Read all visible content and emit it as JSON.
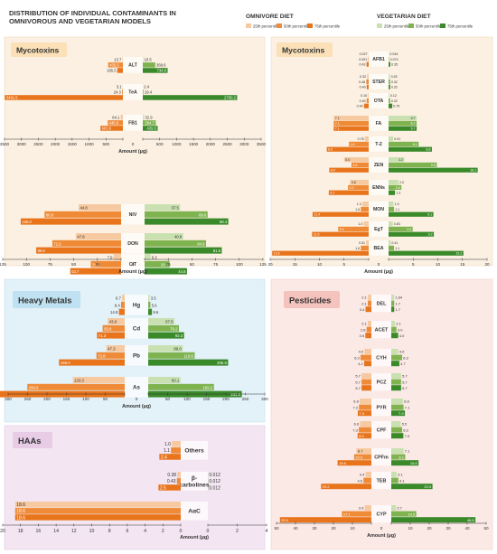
{
  "title_line1": "DISTRIBUTION OF INDIVIDUAL CONTAMINANTS IN",
  "title_line2": "OMNIVOROUS AND VEGETARIAN MODELS",
  "legend": {
    "omnivore_title": "OMNIVORE DIET",
    "vegetarian_title": "VEGETARIAN DIET",
    "p25_label": "25th percentile",
    "p50_label": "50th percentile",
    "p75_label": "75th percentile"
  },
  "colors": {
    "omn": [
      "#f6c9a0",
      "#ef8a36",
      "#e8741c"
    ],
    "veg": [
      "#c9e0b0",
      "#7fb34f",
      "#3a8a2a"
    ],
    "myco_bg": "#fbf0e2",
    "myco_title_bg": "#fbe0b8",
    "hm_bg": "#e3f1f8",
    "hm_title_bg": "#bfe1f1",
    "haa_bg": "#f3e6f2",
    "haa_title_bg": "#e8cce6",
    "pest_bg": "#fbe9e6",
    "pest_title_bg": "#f5c3bd"
  },
  "chart_data": [
    {
      "id": "myco_left_a",
      "section": "Mycotoxins",
      "type": "bar",
      "orientation": "horizontal-diverging",
      "categories": [
        "ALT",
        "TeA",
        "FB1"
      ],
      "xlim": [
        -3500,
        3500
      ],
      "ticks": [
        "3500",
        "3000",
        "2500",
        "2000",
        "1500",
        "1000",
        "500",
        "0",
        "500",
        "1000",
        "1500",
        "2000",
        "2500",
        "3000",
        "3500"
      ],
      "xlabel": "Amount (µg)",
      "omnivore": {
        "p25": [
          13.7,
          3.1,
          64.1
        ],
        "p50": [
          435.5,
          24.3,
          446.9
        ],
        "p75": [
          165.5,
          3491.5,
          663.6
        ]
      },
      "vegetarian": {
        "p25": [
          10.5,
          2.4,
          32.9
        ],
        "p50": [
          368.6,
          19.4,
          384.7
        ],
        "p75": [
          734.6,
          2790.2,
          439.5
        ]
      },
      "omn_labels": {
        "p25": [
          "13.7",
          "3.1",
          "64.1"
        ],
        "p50": [
          "435.5",
          "24.3",
          "446.9"
        ],
        "p75": [
          "165.5",
          "3491.5",
          "663.6"
        ]
      },
      "veg_labels": {
        "p25": [
          "10.5",
          "2.4",
          "32.9"
        ],
        "p50": [
          "368.6",
          "19.4",
          "384.7"
        ],
        "p75": [
          "734.6",
          "2790.2",
          "439.5"
        ]
      }
    },
    {
      "id": "myco_left_b",
      "section": "Mycotoxins",
      "type": "bar",
      "orientation": "horizontal-diverging",
      "categories": [
        "NIV",
        "DON",
        "CIT"
      ],
      "xlim": [
        -125,
        125
      ],
      "ticks": [
        "125",
        "100",
        "75",
        "50",
        "25",
        "0",
        "25",
        "50",
        "75",
        "100",
        "125"
      ],
      "xlabel": "Amount (µg)",
      "omnivore": {
        "p25": [
          44.8,
          47.8,
          7.9
        ],
        "p50": [
          80.8,
          72.6,
          31.9
        ],
        "p75": [
          106.0,
          89.6,
          53.7
        ]
      },
      "vegetarian": {
        "p25": [
          37.5,
          40.8,
          6.3
        ],
        "p50": [
          66.6,
          64.9,
          26.4
        ],
        "p75": [
          88.4,
          81.5,
          44.8
        ]
      },
      "omn_labels": {
        "p25": [
          "44.8",
          "47.8",
          "7.9"
        ],
        "p50": [
          "80.8",
          "72.6",
          "31.9"
        ],
        "p75": [
          "106.0",
          "89.6",
          "53.7"
        ]
      },
      "veg_labels": {
        "p25": [
          "37.5",
          "40.8",
          "6.3"
        ],
        "p50": [
          "66.6",
          "64.9",
          "26.4"
        ],
        "p75": [
          "88.4",
          "81.5",
          "44.8"
        ]
      }
    },
    {
      "id": "myco_right",
      "section": "Mycotoxins",
      "type": "bar",
      "orientation": "horizontal-diverging",
      "categories": [
        "AFB1",
        "STER",
        "OTA",
        "FA",
        "T-2",
        "ZEN",
        "ENNs",
        "MON",
        "EgT",
        "BEA"
      ],
      "xlim": [
        -20,
        20
      ],
      "ticks": [
        "20",
        "15",
        "10",
        "5",
        "0",
        "5",
        "10",
        "15",
        "20"
      ],
      "xlabel": "Amount (µg)",
      "omnivore": {
        "p25": [
          0.027,
          0.32,
          0.15,
          7.1,
          0.76,
          5.0,
          3.8,
          1.3,
          1.0,
          0.51
        ],
        "p50": [
          0.091,
          0.48,
          0.4,
          7.1,
          4.0,
          3.5,
          4.2,
          1.6,
          6.2,
          1.6
        ],
        "p75": [
          0.43,
          0.4,
          0.94,
          7.1,
          8.5,
          8.0,
          8.1,
          11.4,
          11.5,
          19.6
        ]
      },
      "vegetarian": {
        "p25": [
          0.034,
          0.25,
          0.12,
          5.7,
          0.91,
          3.2,
          2.0,
          1.0,
          0.83,
          0.41
        ],
        "p50": [
          0.074,
          0.32,
          0.32,
          5.7,
          6.1,
          9.8,
          2.6,
          1.1,
          4.9,
          1.1
        ],
        "p75": [
          0.35,
          0.32,
          0.75,
          5.7,
          8.8,
          18.1,
          1.3,
          9.1,
          9.2,
          15.2
        ]
      },
      "omn_labels": {
        "p25": [
          "0.027",
          "0.32",
          "0.15",
          "7.1",
          "0.76",
          "5.0",
          "3.8",
          "1.3",
          "1.0",
          "0.51"
        ],
        "p50": [
          "0.091",
          "0.48",
          "0.40",
          "7.1",
          "4.0",
          "3.5",
          "4.2",
          "1.6",
          "6.2",
          "1.6"
        ],
        "p75": [
          "0.43",
          "0.40",
          "0.94",
          "7.1",
          "8.5",
          "8.0",
          "8.1",
          "11.4",
          "11.5",
          "19.6"
        ]
      },
      "veg_labels": {
        "p25": [
          "0.034",
          "0.25",
          "0.12",
          "5.7",
          "0.91",
          "3.2",
          "2.0",
          "1.0",
          "0.83",
          "0.41"
        ],
        "p50": [
          "0.074",
          "0.32",
          "0.32",
          "5.7",
          "6.1",
          "9.8",
          "2.6",
          "1.1",
          "4.9",
          "1.1"
        ],
        "p75": [
          "0.35",
          "0.32",
          "0.75",
          "5.7",
          "8.8",
          "18.1",
          "1.3",
          "9.1",
          "9.2",
          "15.2"
        ]
      }
    },
    {
      "id": "heavy_metals",
      "section": "Heavy Metals",
      "type": "bar",
      "orientation": "horizontal-diverging",
      "categories": [
        "Hg",
        "Cd",
        "Pb",
        "As"
      ],
      "xlim": [
        -300,
        300
      ],
      "ticks": [
        "300",
        "250",
        "200",
        "150",
        "100",
        "50",
        "0",
        "50",
        "100",
        "150",
        "200",
        "250",
        "300"
      ],
      "xlabel": "Amount (µg)",
      "omnivore": {
        "p25": [
          6.7,
          43.6,
          47.3,
          133.3
        ],
        "p50": [
          9.4,
          56.8,
          72.8,
          250.6
        ],
        "p75": [
          14.8,
          71.3,
          169.0,
          379.9
        ]
      },
      "vegetarian": {
        "p25": [
          3.5,
          67.5,
          89.0,
          83.1
        ],
        "p50": [
          5.6,
          79.2,
          119.6,
          169.2
        ],
        "p75": [
          9.6,
          92.3,
          205.6,
          241.0
        ]
      },
      "omn_labels": {
        "p25": [
          "6.7",
          "43.6",
          "47.3",
          "133.3"
        ],
        "p50": [
          "9.4",
          "56.8",
          "72.8",
          "250.6"
        ],
        "p75": [
          "14.8",
          "71.3",
          "169.0",
          "379.9"
        ]
      },
      "veg_labels": {
        "p25": [
          "3.5",
          "67.5",
          "89.0",
          "83.1"
        ],
        "p50": [
          "5.6",
          "79.2",
          "119.6",
          "169.2"
        ],
        "p75": [
          "9.6",
          "92.3",
          "205.6",
          "241.0"
        ]
      }
    },
    {
      "id": "haas",
      "section": "HAAs",
      "type": "bar",
      "orientation": "horizontal-diverging",
      "categories": [
        "Others",
        "β-\ncarbolines",
        "AαC"
      ],
      "xlim_left": [
        0,
        20
      ],
      "xlim_right": [
        0,
        4
      ],
      "ticks_left": [
        "20",
        "18",
        "16",
        "14",
        "12",
        "10",
        "8",
        "6",
        "4",
        "2",
        "0"
      ],
      "ticks_right": [
        "0",
        "2",
        "4"
      ],
      "xlabel": "Amount (µg)",
      "omnivore": {
        "p25": [
          1.0,
          0.38,
          18.6
        ],
        "p50": [
          1.1,
          0.43,
          18.6
        ],
        "p75": [
          2.4,
          2.5,
          18.6
        ]
      },
      "vegetarian": {
        "p25": [
          0,
          0.012,
          0
        ],
        "p50": [
          0,
          0.012,
          0
        ],
        "p75": [
          0,
          0.012,
          0
        ]
      },
      "omn_labels": {
        "p25": [
          "1.0",
          "0.38",
          "18.6"
        ],
        "p50": [
          "1.1",
          "0.43",
          "18.6"
        ],
        "p75": [
          "2.4",
          "2.5",
          "18.6"
        ]
      },
      "veg_labels": {
        "p25": [
          "",
          "0.012",
          ""
        ],
        "p50": [
          "",
          "0.012",
          ""
        ],
        "p75": [
          "",
          "0.012",
          ""
        ]
      }
    },
    {
      "id": "pesticides",
      "section": "Pesticides",
      "type": "bar",
      "orientation": "horizontal-diverging",
      "categories": [
        "DEL",
        "ACET",
        "CYH",
        "PCZ",
        "PYR",
        "CPF",
        "CPFm",
        "TEB",
        "CYP"
      ],
      "xlim": [
        -55,
        55
      ],
      "ticks": [
        "50",
        "40",
        "30",
        "20",
        "10",
        "0",
        "10",
        "20",
        "30",
        "40",
        "50"
      ],
      "xlabel": "Amount (µg)",
      "omnivore": {
        "p25": [
          2.1,
          2.1,
          4.0,
          5.7,
          6.8,
          6.6,
          8.7,
          3.4,
          3.9
        ],
        "p50": [
          2.1,
          2.8,
          6.3,
          5.7,
          7.2,
          7.3,
          10.0,
          4.6,
          17.1
        ],
        "p75": [
          3.4,
          3.5,
          4.2,
          5.7,
          7.9,
          8.0,
          19.6,
          29.2,
          53.0
        ]
      },
      "vegetarian": {
        "p25": [
          1.64,
          2.1,
          4.0,
          5.7,
          6.8,
          5.5,
          7.1,
          3.1,
          2.7
        ],
        "p50": [
          1.7,
          3.0,
          6.3,
          5.7,
          7.1,
          6.3,
          8.1,
          4.1,
          14.5
        ],
        "p75": [
          1.7,
          4.0,
          4.7,
          5.7,
          7.9,
          7.0,
          15.8,
          23.9,
          48.8
        ]
      },
      "omn_labels": {
        "p25": [
          "2.1",
          "2.1",
          "4.0",
          "5.7",
          "6.8",
          "6.6",
          "8.7",
          "3.4",
          "3.9"
        ],
        "p50": [
          "2.1",
          "2.8",
          "6.3",
          "5.7",
          "7.2",
          "7.3",
          "10.0",
          "4.6",
          "17.1"
        ],
        "p75": [
          "3.4",
          "3.5",
          "4.2",
          "5.7",
          "7.9",
          "8.0",
          "19.6",
          "29.2",
          "53.0"
        ]
      },
      "veg_labels": {
        "p25": [
          "1.64",
          "2.1",
          "4.0",
          "5.7",
          "6.8",
          "5.5",
          "7.1",
          "3.1",
          "2.7"
        ],
        "p50": [
          "1.7",
          "3.0",
          "6.3",
          "5.7",
          "7.1",
          "6.3",
          "8.1",
          "4.1",
          "14.5"
        ],
        "p75": [
          "1.7",
          "4.0",
          "4.7",
          "5.7",
          "7.9",
          "7.0",
          "15.8",
          "23.9",
          "48.8"
        ]
      }
    }
  ],
  "sections": {
    "myco_left": "Mycotoxins",
    "myco_right": "Mycotoxins",
    "heavy_metals": "Heavy Metals",
    "haas": "HAAs",
    "pesticides": "Pesticides"
  }
}
